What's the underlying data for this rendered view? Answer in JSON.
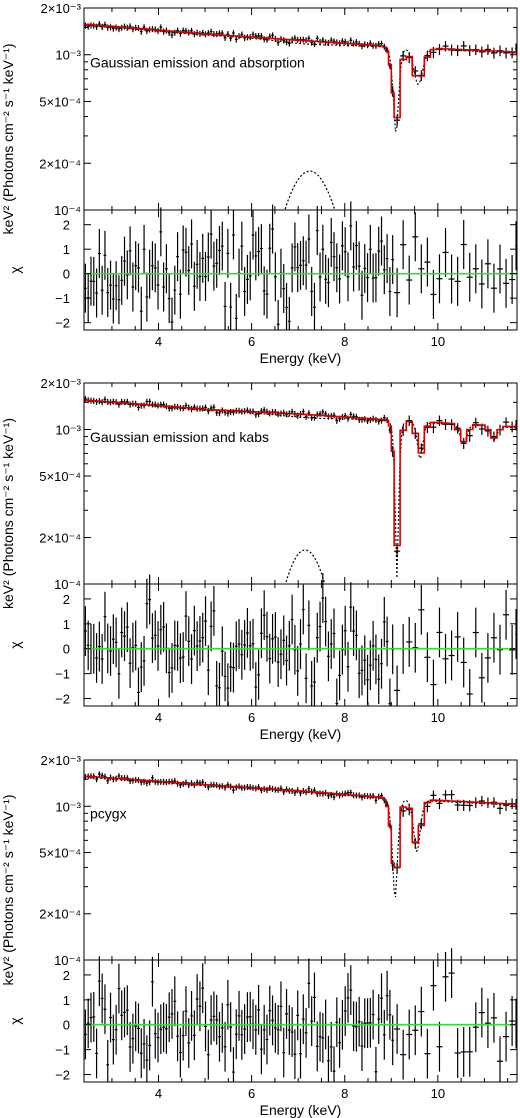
{
  "xaxis": {
    "label": "Energy (keV)",
    "range": [
      2.4,
      11.7
    ],
    "ticks": [
      4,
      6,
      8,
      10
    ],
    "tick_labels": [
      "4",
      "6",
      "8",
      "10"
    ]
  },
  "yaxis_top": {
    "label": "keV² (Photons cm⁻² s⁻¹ keV⁻¹)",
    "scale": "log",
    "range": [
      0.0001,
      0.002
    ],
    "ticks": [
      0.0001,
      0.0002,
      0.0005,
      0.001,
      0.002
    ],
    "tick_labels": [
      "10⁻⁴",
      "2×10⁻⁴",
      "5×10⁻⁴",
      "10⁻³",
      "2×10⁻³"
    ]
  },
  "yaxis_bottom": {
    "label": "χ",
    "range": [
      -2.3,
      2.6
    ],
    "ticks": [
      -2,
      -1,
      0,
      1,
      2
    ],
    "tick_labels": [
      "−2",
      "−1",
      "0",
      "1",
      "2"
    ]
  },
  "colors": {
    "model": "#d40000",
    "zero_line": "#33dd33",
    "data": "#000000"
  },
  "chart_data": [
    {
      "type": "line",
      "annotation": "Gaussian emission and absorption",
      "xlabel": "Energy (keV)",
      "ylabel": "keV² (Photons cm⁻² s⁻¹ keV⁻¹)",
      "ylabel_residual": "χ",
      "xlim": [
        2.4,
        11.7
      ],
      "ylim": [
        0.0001,
        0.002
      ],
      "ylim_residual": [
        -2.3,
        2.6
      ],
      "continuum": [
        [
          2.4,
          0.00157
        ],
        [
          5.0,
          0.00136
        ],
        [
          7.0,
          0.00124
        ],
        [
          9.0,
          0.00113
        ],
        [
          11.7,
          0.00104
        ]
      ],
      "absorption_lines": [
        {
          "energy": 9.1,
          "width": 0.09,
          "depth": 0.00076
        },
        {
          "energy": 9.58,
          "width": 0.13,
          "depth": 0.00043
        }
      ],
      "emission_line": {
        "energy": 7.25,
        "width": 0.5,
        "peak": 0.000178,
        "range": [
          6.0,
          8.55
        ]
      },
      "residual_seed": 11
    },
    {
      "type": "line",
      "annotation": "Gaussian emission and kabs",
      "xlabel": "Energy (keV)",
      "ylabel": "keV² (Photons cm⁻² s⁻¹ keV⁻¹)",
      "ylabel_residual": "χ",
      "xlim": [
        2.4,
        11.7
      ],
      "ylim": [
        0.0001,
        0.002
      ],
      "ylim_residual": [
        -2.3,
        2.6
      ],
      "continuum": [
        [
          2.4,
          0.00155
        ],
        [
          5.0,
          0.00135
        ],
        [
          7.0,
          0.00126
        ],
        [
          9.0,
          0.00115
        ],
        [
          11.7,
          0.00104
        ]
      ],
      "absorption_lines": [
        {
          "energy": 9.12,
          "width": 0.07,
          "depth": 0.00097
        },
        {
          "energy": 9.62,
          "width": 0.08,
          "depth": 0.00044
        },
        {
          "energy": 10.55,
          "width": 0.09,
          "depth": 0.00025
        },
        {
          "energy": 11.2,
          "width": 0.09,
          "depth": 0.00018
        }
      ],
      "emission_line": {
        "energy": 7.15,
        "width": 0.42,
        "peak": 0.000166,
        "range": [
          6.1,
          8.1
        ]
      },
      "residual_seed": 29
    },
    {
      "type": "line",
      "annotation": "pcygx",
      "xlabel": "Energy (keV)",
      "ylabel": "keV² (Photons cm⁻² s⁻¹ keV⁻¹)",
      "ylabel_residual": "χ",
      "xlim": [
        2.4,
        11.7
      ],
      "ylim": [
        0.0001,
        0.002
      ],
      "ylim_residual": [
        -2.3,
        2.6
      ],
      "continuum": [
        [
          2.4,
          0.00157
        ],
        [
          5.0,
          0.00138
        ],
        [
          7.0,
          0.00126
        ],
        [
          9.0,
          0.00113
        ],
        [
          11.7,
          0.00103
        ]
      ],
      "absorption_lines": [
        {
          "energy": 9.08,
          "width": 0.09,
          "depth": 0.00082
        },
        {
          "energy": 9.55,
          "width": 0.1,
          "depth": 0.00056
        }
      ],
      "emission_line": null,
      "residual_seed": 47
    }
  ]
}
